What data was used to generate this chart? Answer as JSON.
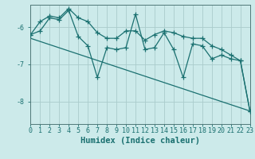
{
  "title": "",
  "xlabel": "Humidex (Indice chaleur)",
  "ylabel": "",
  "bg_color": "#cceaea",
  "grid_color": "#aacccc",
  "line_color": "#1a7070",
  "xlim": [
    0,
    23
  ],
  "ylim": [
    -8.6,
    -5.4
  ],
  "yticks": [
    -8,
    -7,
    -6
  ],
  "xticks": [
    0,
    1,
    2,
    3,
    4,
    5,
    6,
    7,
    8,
    9,
    10,
    11,
    12,
    13,
    14,
    15,
    16,
    17,
    18,
    19,
    20,
    21,
    22,
    23
  ],
  "series": [
    {
      "points": [
        [
          0,
          -6.2
        ],
        [
          1,
          -6.1
        ],
        [
          2,
          -5.75
        ],
        [
          3,
          -5.8
        ],
        [
          4,
          -5.55
        ],
        [
          5,
          -6.25
        ],
        [
          6,
          -6.5
        ],
        [
          7,
          -7.35
        ],
        [
          8,
          -6.55
        ],
        [
          9,
          -6.6
        ],
        [
          10,
          -6.55
        ],
        [
          11,
          -5.65
        ],
        [
          12,
          -6.6
        ],
        [
          13,
          -6.55
        ],
        [
          14,
          -6.15
        ],
        [
          15,
          -6.6
        ],
        [
          16,
          -7.35
        ],
        [
          17,
          -6.45
        ],
        [
          18,
          -6.5
        ],
        [
          19,
          -6.85
        ],
        [
          20,
          -6.75
        ],
        [
          21,
          -6.85
        ],
        [
          22,
          -6.9
        ],
        [
          23,
          -8.25
        ]
      ],
      "marker": "+"
    },
    {
      "points": [
        [
          0,
          -6.2
        ],
        [
          1,
          -5.85
        ],
        [
          2,
          -5.7
        ],
        [
          3,
          -5.75
        ],
        [
          4,
          -5.5
        ],
        [
          5,
          -5.75
        ],
        [
          6,
          -5.85
        ],
        [
          7,
          -6.15
        ],
        [
          8,
          -6.3
        ],
        [
          9,
          -6.3
        ],
        [
          10,
          -6.1
        ],
        [
          11,
          -6.1
        ],
        [
          12,
          -6.35
        ],
        [
          13,
          -6.2
        ],
        [
          14,
          -6.1
        ],
        [
          15,
          -6.15
        ],
        [
          16,
          -6.25
        ],
        [
          17,
          -6.3
        ],
        [
          18,
          -6.3
        ],
        [
          19,
          -6.5
        ],
        [
          20,
          -6.6
        ],
        [
          21,
          -6.75
        ],
        [
          22,
          -6.9
        ],
        [
          23,
          -8.25
        ]
      ],
      "marker": "+"
    },
    {
      "points": [
        [
          0,
          -6.3
        ],
        [
          23,
          -8.25
        ]
      ],
      "marker": null
    }
  ],
  "marker_size": 4,
  "linewidth": 0.9,
  "tick_fontsize": 6,
  "label_fontsize": 7.5
}
